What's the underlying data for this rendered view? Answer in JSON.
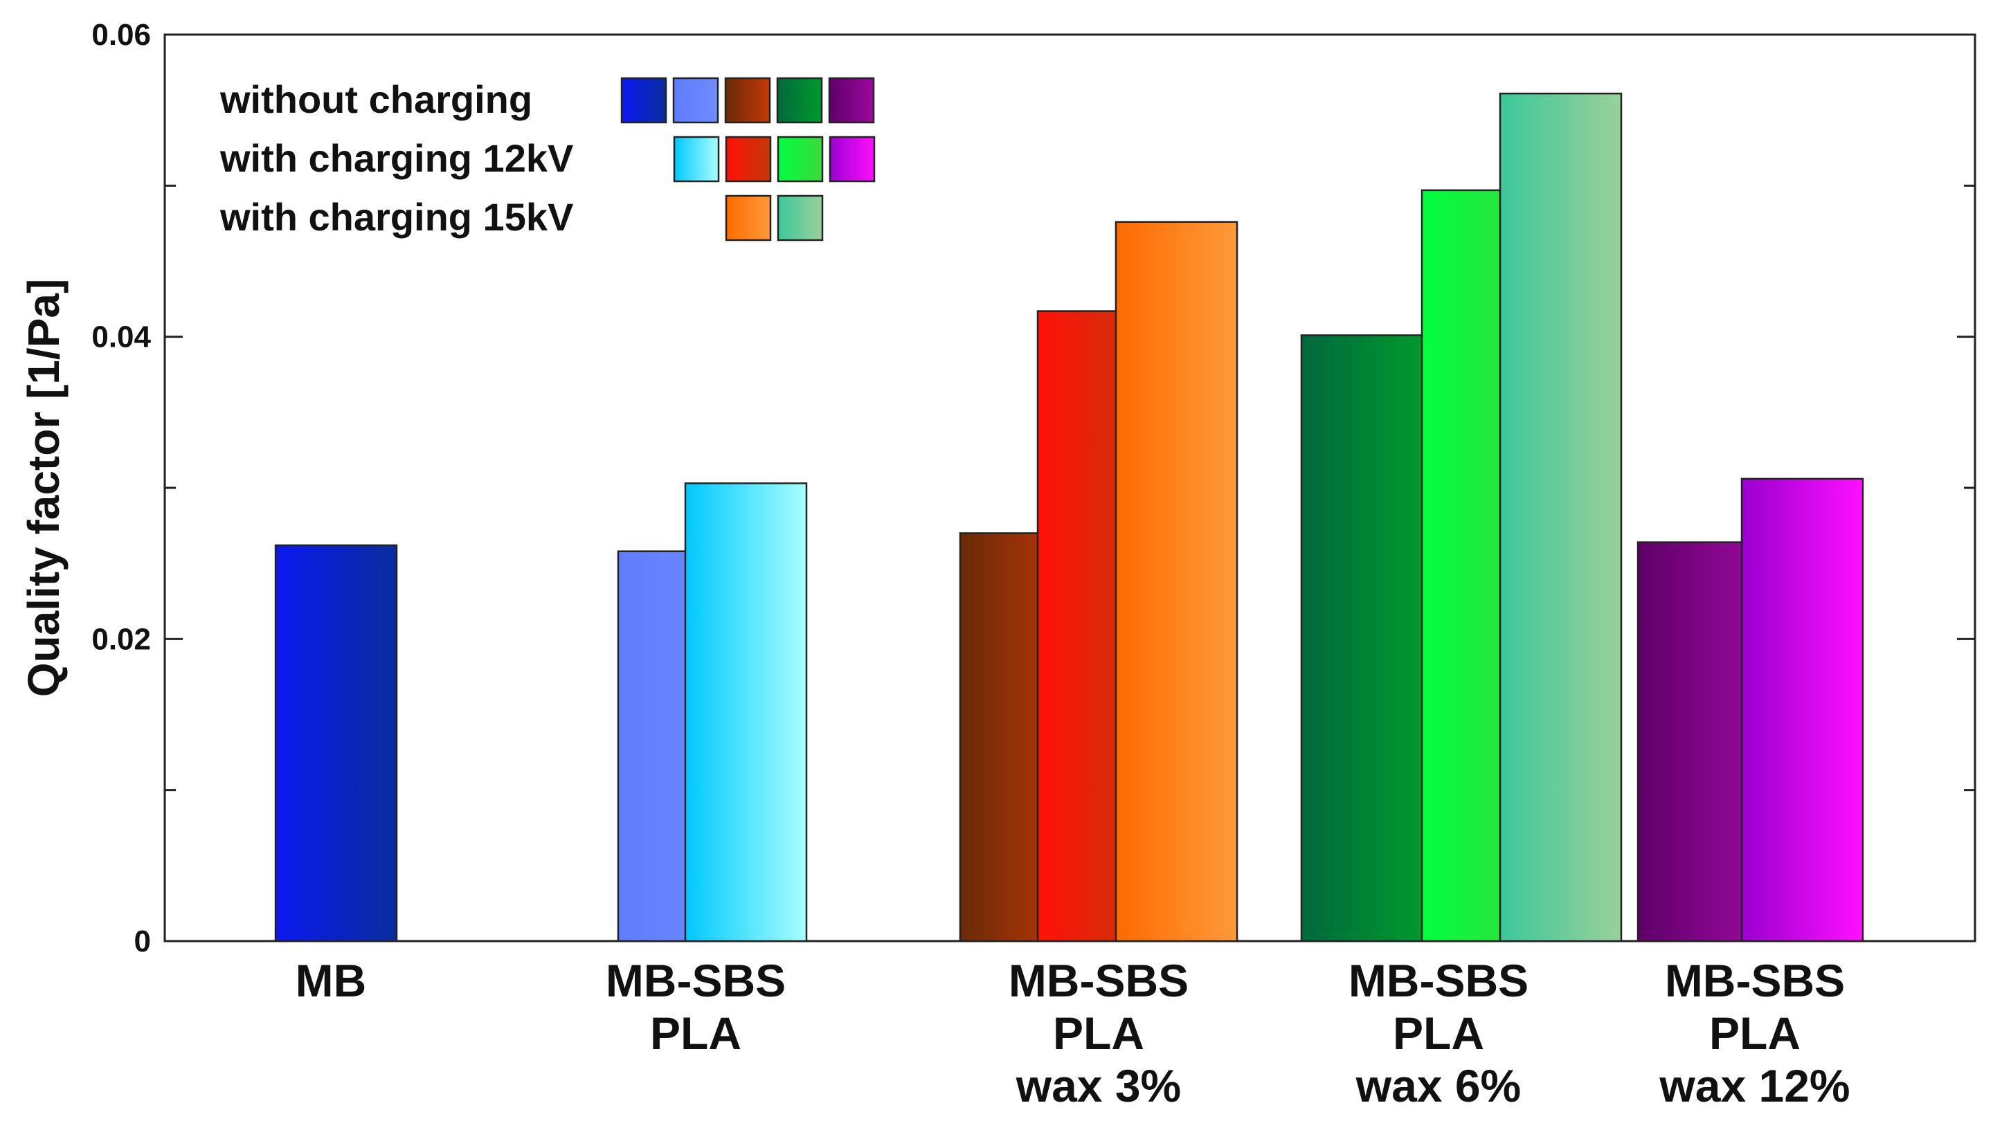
{
  "chart_data": {
    "type": "bar",
    "title": "",
    "xlabel": "",
    "ylabel": "Quality factor [1/Pa]",
    "ylim": [
      0,
      0.06
    ],
    "yticks": [
      "0",
      "0.02",
      "0.04",
      "0.06"
    ],
    "grid": false,
    "legend_position": "top-left",
    "legend": {
      "entries": [
        {
          "label": "without charging",
          "swatch_count": 5
        },
        {
          "label": "with charging 12kV",
          "swatch_count": 4
        },
        {
          "label": "with charging 15kV",
          "swatch_count": 2
        }
      ]
    },
    "categories": [
      {
        "lines": [
          "MB"
        ]
      },
      {
        "lines": [
          "MB-SBS",
          "PLA"
        ]
      },
      {
        "lines": [
          "MB-SBS",
          "PLA",
          "wax 3%"
        ]
      },
      {
        "lines": [
          "MB-SBS",
          "PLA",
          "wax 6%"
        ]
      },
      {
        "lines": [
          "MB-SBS",
          "PLA",
          "wax 12%"
        ]
      }
    ],
    "series": [
      {
        "name": "without charging",
        "values": [
          0.0262,
          0.0258,
          0.027,
          0.0401,
          0.0264
        ],
        "colors": [
          [
            "#0a18f0",
            "#0a2e9c"
          ],
          [
            "#5f7cff",
            "#6f8cff"
          ],
          [
            "#6b2a08",
            "#c23a08"
          ],
          [
            "#00683c",
            "#009a2e"
          ],
          [
            "#5e0068",
            "#9a0a9e"
          ]
        ]
      },
      {
        "name": "with charging 12kV",
        "values": [
          null,
          0.0303,
          0.0417,
          0.0497,
          0.0306
        ],
        "colors": [
          null,
          [
            "#00c8ff",
            "#a8ffff"
          ],
          [
            "#ff1008",
            "#c03a0a"
          ],
          [
            "#00ff40",
            "#3cd83c"
          ],
          [
            "#9a00d0",
            "#ff10ff"
          ]
        ]
      },
      {
        "name": "with charging 15kV",
        "values": [
          null,
          null,
          0.0476,
          0.0561,
          null
        ],
        "colors": [
          null,
          null,
          [
            "#ff6a00",
            "#ff9a3a"
          ],
          [
            "#3cc89a",
            "#9ad09a"
          ],
          null
        ]
      }
    ]
  }
}
